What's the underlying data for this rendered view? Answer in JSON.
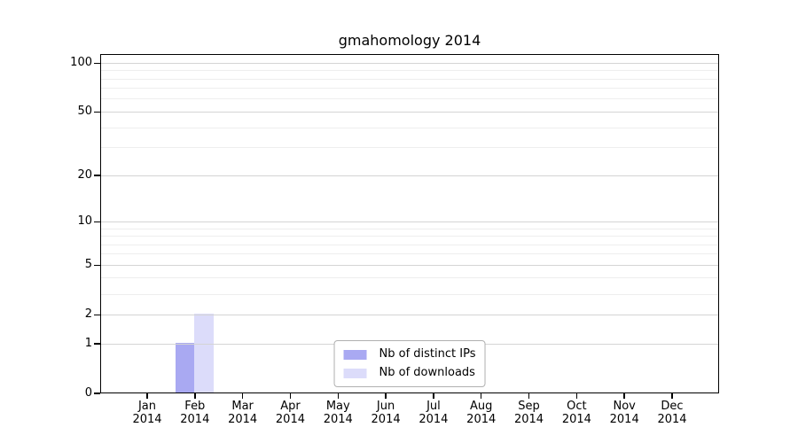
{
  "chart_data": {
    "type": "bar",
    "title": "gmahomology 2014",
    "yscale": "log1p",
    "ylim": [
      0,
      113.6
    ],
    "y_ticks": [
      0,
      1,
      2,
      5,
      10,
      20,
      50,
      100
    ],
    "y_minor_ticks": [
      3,
      4,
      6,
      7,
      8,
      9,
      30,
      40,
      60,
      70,
      80,
      90
    ],
    "categories": [
      "Jan",
      "Feb",
      "Mar",
      "Apr",
      "May",
      "Jun",
      "Jul",
      "Aug",
      "Sep",
      "Oct",
      "Nov",
      "Dec"
    ],
    "category_year": "2014",
    "series": [
      {
        "name": "Nb of distinct IPs",
        "color": "#a9a9f2",
        "values": [
          0,
          1,
          0,
          0,
          0,
          0,
          0,
          0,
          0,
          0,
          0,
          0
        ]
      },
      {
        "name": "Nb of downloads",
        "color": "#dcdcfa",
        "values": [
          0,
          2,
          0,
          0,
          0,
          0,
          0,
          0,
          0,
          0,
          0,
          0
        ]
      }
    ],
    "grid": true,
    "legend_position": "lower center inside plot",
    "colors": {
      "major_grid": "#d4d4d4",
      "minor_grid": "#eeeeee",
      "spine": "#000000",
      "legend_border": "#b0b0b0"
    }
  }
}
